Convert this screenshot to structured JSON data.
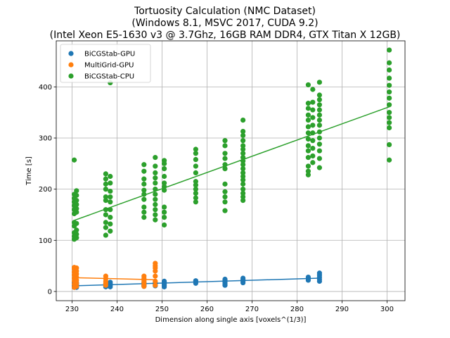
{
  "chart_data": {
    "type": "scatter",
    "title_lines": [
      "Tortuosity Calculation (NMC Dataset)",
      "(Windows 8.1, MSVC 2017, CUDA 9.2)",
      "(Intel Xeon E5-1630 v3 @ 3.7Ghz, 16GB RAM DDR4, GTX Titan X 12GB)"
    ],
    "xlabel": "Dimension along single axis [voxels^(1/3)]",
    "ylabel": "Time [s]",
    "xlim": [
      226.5,
      304
    ],
    "ylim": [
      -18,
      490
    ],
    "xticks": [
      230,
      240,
      250,
      260,
      270,
      280,
      290,
      300
    ],
    "yticks": [
      0,
      100,
      200,
      300,
      400
    ],
    "grid": true,
    "legend_position": "top-left",
    "series": [
      {
        "name": "BiCGStab-GPU",
        "color": "#1f77b4",
        "points": [
          [
            230.5,
            8
          ],
          [
            230.5,
            10
          ],
          [
            230.5,
            12
          ],
          [
            230.5,
            14
          ],
          [
            230.5,
            16
          ],
          [
            230.5,
            18
          ],
          [
            231,
            8
          ],
          [
            231,
            11
          ],
          [
            231,
            14
          ],
          [
            231,
            17
          ],
          [
            237.5,
            9
          ],
          [
            237.5,
            11
          ],
          [
            237.5,
            13
          ],
          [
            237.5,
            15
          ],
          [
            238.5,
            9
          ],
          [
            238.5,
            12
          ],
          [
            238.5,
            15
          ],
          [
            238.5,
            18
          ],
          [
            246,
            10
          ],
          [
            246,
            12
          ],
          [
            246,
            14
          ],
          [
            246,
            16
          ],
          [
            246,
            18
          ],
          [
            248.5,
            11
          ],
          [
            248.5,
            14
          ],
          [
            248.5,
            17
          ],
          [
            250.5,
            9
          ],
          [
            250.5,
            12
          ],
          [
            250.5,
            15
          ],
          [
            250.5,
            18
          ],
          [
            250.5,
            20
          ],
          [
            257.5,
            16
          ],
          [
            257.5,
            19
          ],
          [
            257.5,
            21
          ],
          [
            264,
            12
          ],
          [
            264,
            15
          ],
          [
            264,
            18
          ],
          [
            264,
            21
          ],
          [
            264,
            24
          ],
          [
            268,
            17
          ],
          [
            268,
            20
          ],
          [
            268,
            23
          ],
          [
            268,
            26
          ],
          [
            282.5,
            22
          ],
          [
            282.5,
            25
          ],
          [
            282.5,
            28
          ],
          [
            285,
            20
          ],
          [
            285,
            24
          ],
          [
            285,
            28
          ],
          [
            285,
            32
          ],
          [
            285,
            36
          ]
        ],
        "fit": [
          [
            230.5,
            11
          ],
          [
            285,
            26
          ]
        ]
      },
      {
        "name": "MultiGrid-GPU",
        "color": "#ff7f0e",
        "points": [
          [
            230.5,
            8
          ],
          [
            230.5,
            14
          ],
          [
            230.5,
            20
          ],
          [
            230.5,
            26
          ],
          [
            230.5,
            32
          ],
          [
            230.5,
            38
          ],
          [
            230.5,
            44
          ],
          [
            230.5,
            47
          ],
          [
            231,
            10
          ],
          [
            231,
            16
          ],
          [
            231,
            22
          ],
          [
            231,
            28
          ],
          [
            231,
            34
          ],
          [
            231,
            40
          ],
          [
            231,
            46
          ],
          [
            237.5,
            12
          ],
          [
            237.5,
            16
          ],
          [
            237.5,
            20
          ],
          [
            237.5,
            25
          ],
          [
            237.5,
            30
          ],
          [
            246,
            10
          ],
          [
            246,
            14
          ],
          [
            246,
            18
          ],
          [
            246,
            22
          ],
          [
            246,
            26
          ],
          [
            246,
            30
          ],
          [
            248.5,
            12
          ],
          [
            248.5,
            20
          ],
          [
            248.5,
            30
          ],
          [
            248.5,
            40
          ],
          [
            248.5,
            46
          ],
          [
            248.5,
            50
          ],
          [
            248.5,
            55
          ]
        ],
        "fit": [
          [
            230.5,
            27
          ],
          [
            248.5,
            23
          ]
        ]
      },
      {
        "name": "BiCGStab-CPU",
        "color": "#2ca02c",
        "points": [
          [
            230.5,
            257
          ],
          [
            230.5,
            190
          ],
          [
            230.5,
            182
          ],
          [
            230.5,
            175
          ],
          [
            230.5,
            168
          ],
          [
            230.5,
            160
          ],
          [
            230.5,
            152
          ],
          [
            230.5,
            135
          ],
          [
            230.5,
            128
          ],
          [
            230.5,
            115
          ],
          [
            230.5,
            108
          ],
          [
            230.5,
            102
          ],
          [
            231,
            197
          ],
          [
            231,
            188
          ],
          [
            231,
            178
          ],
          [
            231,
            170
          ],
          [
            231,
            162
          ],
          [
            231,
            155
          ],
          [
            231,
            133
          ],
          [
            231,
            120
          ],
          [
            231,
            112
          ],
          [
            231,
            105
          ],
          [
            237.5,
            230
          ],
          [
            237.5,
            220
          ],
          [
            237.5,
            210
          ],
          [
            237.5,
            200
          ],
          [
            237.5,
            185
          ],
          [
            237.5,
            178
          ],
          [
            237.5,
            160
          ],
          [
            237.5,
            150
          ],
          [
            237.5,
            135
          ],
          [
            237.5,
            125
          ],
          [
            237.5,
            110
          ],
          [
            238.5,
            408
          ],
          [
            238.5,
            225
          ],
          [
            238.5,
            212
          ],
          [
            238.5,
            196
          ],
          [
            238.5,
            185
          ],
          [
            238.5,
            175
          ],
          [
            238.5,
            160
          ],
          [
            238.5,
            145
          ],
          [
            238.5,
            132
          ],
          [
            238.5,
            118
          ],
          [
            246,
            248
          ],
          [
            246,
            235
          ],
          [
            246,
            220
          ],
          [
            246,
            210
          ],
          [
            246,
            198
          ],
          [
            246,
            190
          ],
          [
            246,
            180
          ],
          [
            246,
            165
          ],
          [
            246,
            155
          ],
          [
            246,
            145
          ],
          [
            248.5,
            262
          ],
          [
            248.5,
            245
          ],
          [
            248.5,
            232
          ],
          [
            248.5,
            222
          ],
          [
            248.5,
            212
          ],
          [
            248.5,
            200
          ],
          [
            248.5,
            190
          ],
          [
            248.5,
            180
          ],
          [
            248.5,
            170
          ],
          [
            248.5,
            160
          ],
          [
            248.5,
            150
          ],
          [
            248.5,
            140
          ],
          [
            250.5,
            256
          ],
          [
            250.5,
            250
          ],
          [
            250.5,
            240
          ],
          [
            250.5,
            225
          ],
          [
            250.5,
            212
          ],
          [
            250.5,
            205
          ],
          [
            250.5,
            198
          ],
          [
            250.5,
            165
          ],
          [
            250.5,
            155
          ],
          [
            250.5,
            145
          ],
          [
            250.5,
            130
          ],
          [
            257.5,
            278
          ],
          [
            257.5,
            270
          ],
          [
            257.5,
            258
          ],
          [
            257.5,
            245
          ],
          [
            257.5,
            232
          ],
          [
            257.5,
            215
          ],
          [
            257.5,
            208
          ],
          [
            257.5,
            200
          ],
          [
            257.5,
            192
          ],
          [
            257.5,
            183
          ],
          [
            257.5,
            175
          ],
          [
            264,
            295
          ],
          [
            264,
            285
          ],
          [
            264,
            270
          ],
          [
            264,
            260
          ],
          [
            264,
            248
          ],
          [
            264,
            240
          ],
          [
            264,
            210
          ],
          [
            264,
            195
          ],
          [
            264,
            185
          ],
          [
            264,
            175
          ],
          [
            264,
            158
          ],
          [
            268,
            335
          ],
          [
            268,
            313
          ],
          [
            268,
            305
          ],
          [
            268,
            295
          ],
          [
            268,
            285
          ],
          [
            268,
            278
          ],
          [
            268,
            270
          ],
          [
            268,
            262
          ],
          [
            268,
            255
          ],
          [
            268,
            248
          ],
          [
            268,
            240
          ],
          [
            268,
            232
          ],
          [
            268,
            225
          ],
          [
            268,
            218
          ],
          [
            268,
            210
          ],
          [
            268,
            200
          ],
          [
            268,
            192
          ],
          [
            268,
            185
          ],
          [
            268,
            178
          ],
          [
            282.5,
            404
          ],
          [
            282.5,
            368
          ],
          [
            282.5,
            358
          ],
          [
            282.5,
            345
          ],
          [
            282.5,
            335
          ],
          [
            282.5,
            322
          ],
          [
            282.5,
            310
          ],
          [
            282.5,
            298
          ],
          [
            282.5,
            285
          ],
          [
            282.5,
            275
          ],
          [
            282.5,
            262
          ],
          [
            282.5,
            245
          ],
          [
            282.5,
            235
          ],
          [
            282.5,
            228
          ],
          [
            283.5,
            395
          ],
          [
            283.5,
            370
          ],
          [
            283.5,
            355
          ],
          [
            283.5,
            340
          ],
          [
            283.5,
            325
          ],
          [
            283.5,
            310
          ],
          [
            283.5,
            295
          ],
          [
            283.5,
            280
          ],
          [
            283.5,
            265
          ],
          [
            283.5,
            252
          ],
          [
            285,
            409
          ],
          [
            285,
            384
          ],
          [
            285,
            375
          ],
          [
            285,
            365
          ],
          [
            285,
            355
          ],
          [
            285,
            345
          ],
          [
            285,
            335
          ],
          [
            285,
            325
          ],
          [
            285,
            312
          ],
          [
            285,
            300
          ],
          [
            285,
            288
          ],
          [
            285,
            275
          ],
          [
            285,
            260
          ],
          [
            285,
            242
          ],
          [
            300.5,
            472
          ],
          [
            300.5,
            447
          ],
          [
            300.5,
            433
          ],
          [
            300.5,
            417
          ],
          [
            300.5,
            403
          ],
          [
            300.5,
            390
          ],
          [
            300.5,
            378
          ],
          [
            300.5,
            365
          ],
          [
            300.5,
            350
          ],
          [
            300.5,
            340
          ],
          [
            300.5,
            330
          ],
          [
            300.5,
            320
          ],
          [
            300.5,
            287
          ],
          [
            300.5,
            257
          ]
        ],
        "fit": [
          [
            230.5,
            139
          ],
          [
            300.5,
            361
          ]
        ]
      }
    ]
  }
}
